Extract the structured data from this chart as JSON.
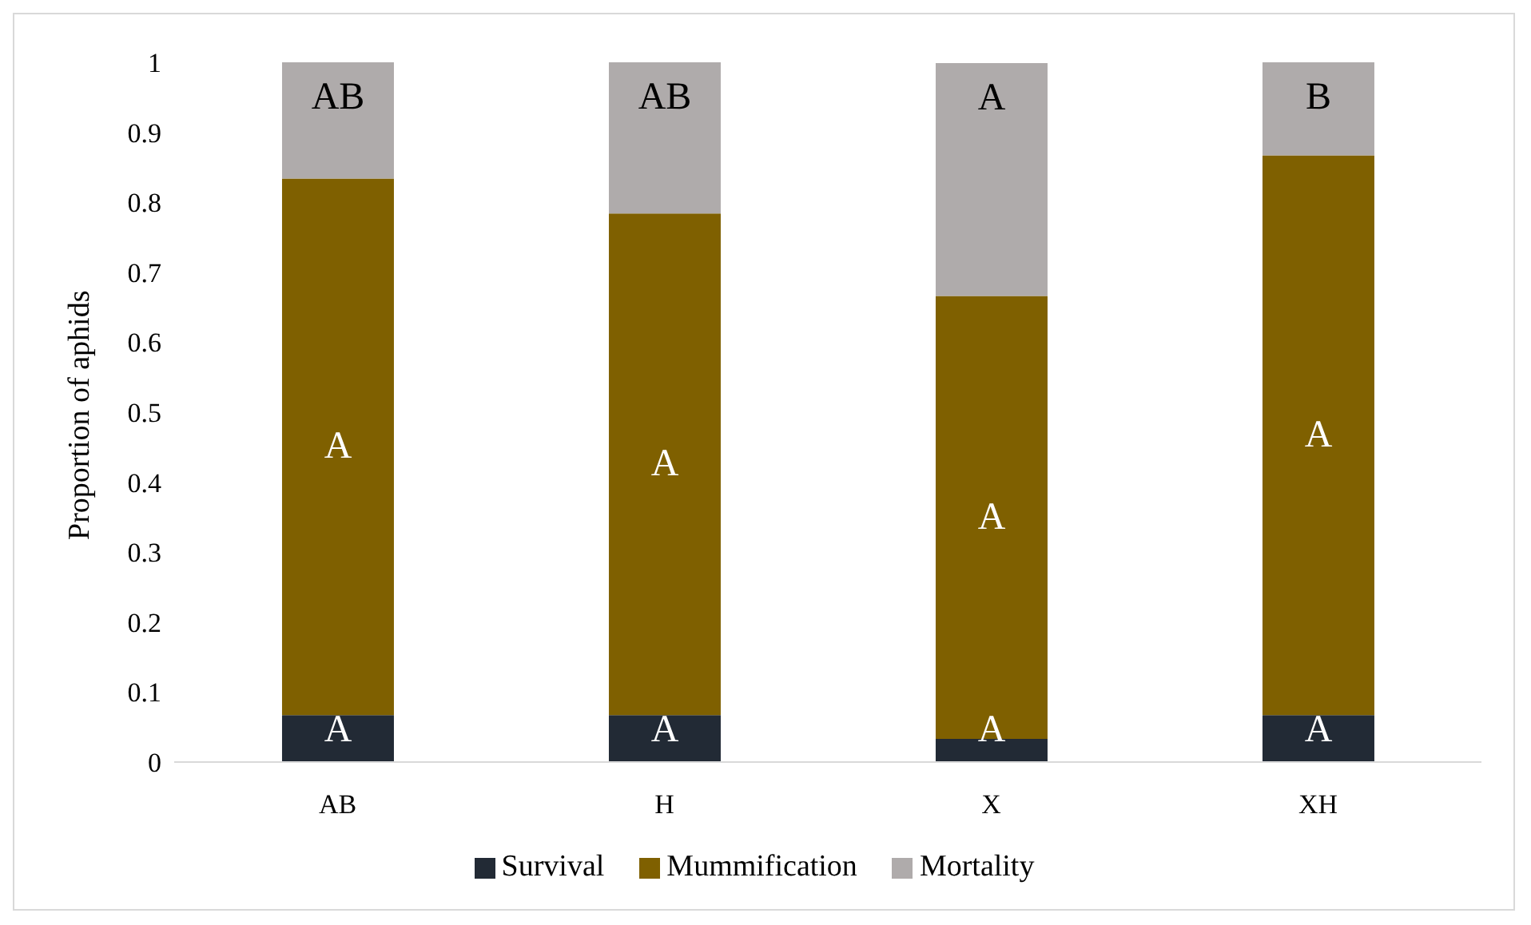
{
  "chart_data": {
    "type": "bar",
    "stacked": true,
    "categories": [
      "AB",
      "H",
      "X",
      "XH"
    ],
    "series": [
      {
        "name": "Survival",
        "color": "#222a35",
        "values": [
          0.067,
          0.067,
          0.033,
          0.067
        ],
        "value_labels": [
          "A",
          "A",
          "A",
          "A"
        ]
      },
      {
        "name": "Mummification",
        "color": "#7f6000",
        "values": [
          0.767,
          0.717,
          0.633,
          0.8
        ],
        "value_labels": [
          "A",
          "A",
          "A",
          "A"
        ]
      },
      {
        "name": "Mortality",
        "color": "#afabab",
        "values": [
          0.167,
          0.217,
          0.333,
          0.133
        ],
        "value_labels": [
          "AB",
          "AB",
          "A",
          "B"
        ]
      }
    ],
    "ylabel": "Proportion of aphids",
    "ylim": [
      0,
      1
    ],
    "yticks": [
      0,
      0.1,
      0.2,
      0.3,
      0.4,
      0.5,
      0.6,
      0.7,
      0.8,
      0.9,
      1
    ],
    "grid": false,
    "legend": "bottom"
  }
}
